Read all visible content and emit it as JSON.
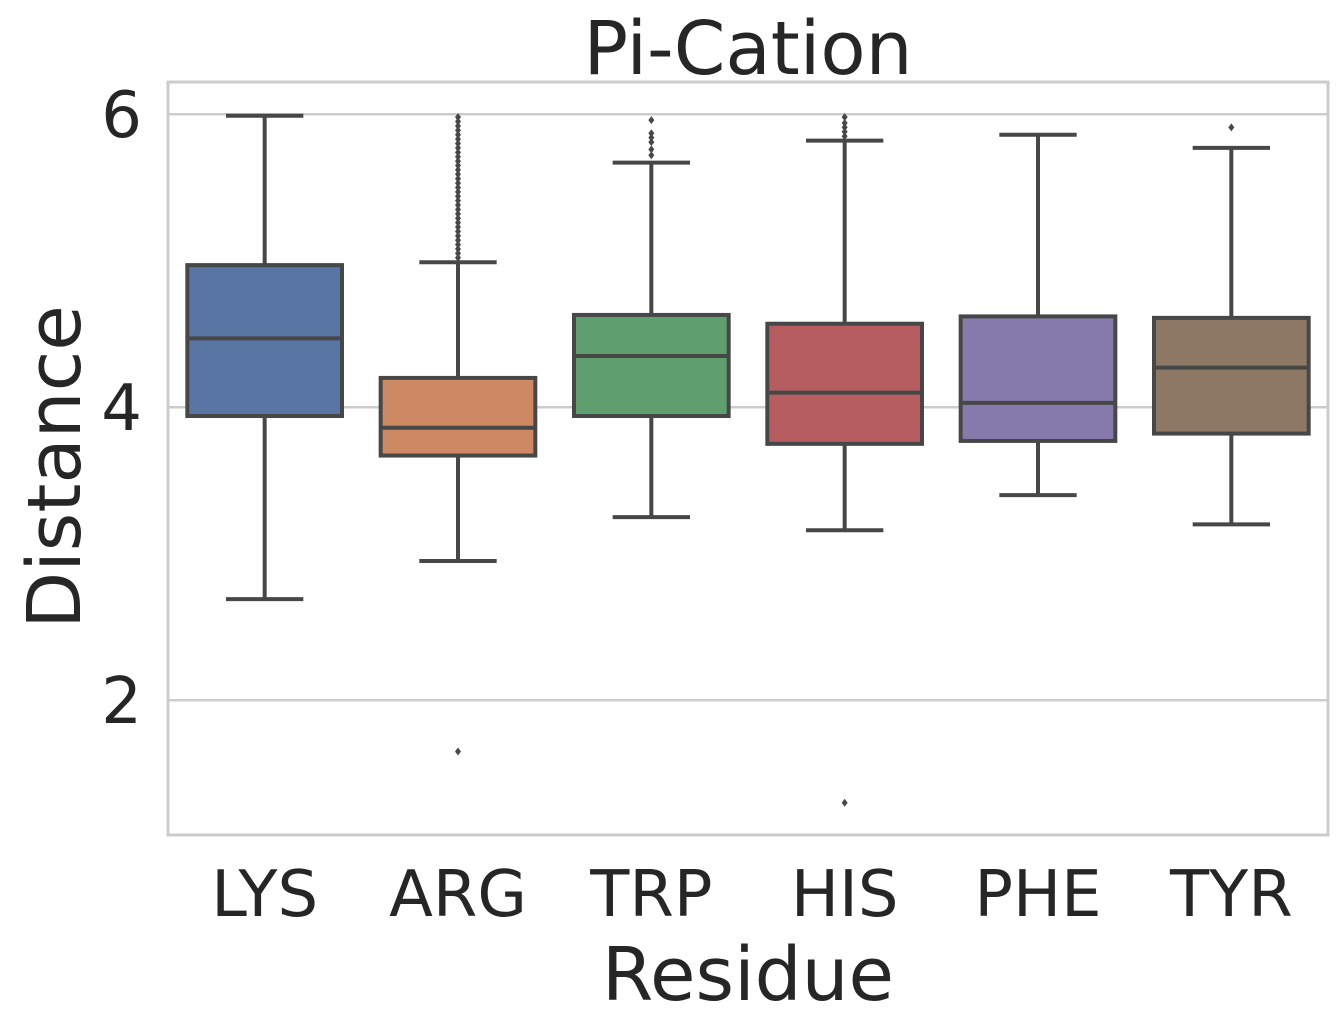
{
  "chart_data": {
    "type": "box",
    "title": "Pi-Cation",
    "xlabel": "Residue",
    "ylabel": "Distance",
    "ylim": [
      1.08,
      6.22
    ],
    "yticks": [
      2,
      4,
      6
    ],
    "ytick_labels": [
      "2",
      "4",
      "6"
    ],
    "grid": true,
    "categories": [
      "LYS",
      "ARG",
      "TRP",
      "HIS",
      "PHE",
      "TYR"
    ],
    "colors": [
      "#5875a4",
      "#cc8963",
      "#5f9e6e",
      "#b55d60",
      "#857aab",
      "#8d7866"
    ],
    "boxes": [
      {
        "category": "LYS",
        "whisker_low": 2.69,
        "q1": 3.94,
        "median": 4.47,
        "q3": 4.97,
        "whisker_high": 5.99,
        "outliers": []
      },
      {
        "category": "ARG",
        "whisker_low": 2.95,
        "q1": 3.67,
        "median": 3.86,
        "q3": 4.2,
        "whisker_high": 4.99,
        "outliers": [
          1.65,
          5.02,
          5.05,
          5.08,
          5.11,
          5.14,
          5.17,
          5.2,
          5.23,
          5.26,
          5.29,
          5.32,
          5.35,
          5.38,
          5.41,
          5.44,
          5.47,
          5.5,
          5.53,
          5.56,
          5.59,
          5.62,
          5.65,
          5.68,
          5.71,
          5.74,
          5.77,
          5.8,
          5.83,
          5.86,
          5.89,
          5.92,
          5.95,
          5.98
        ]
      },
      {
        "category": "TRP",
        "whisker_low": 3.25,
        "q1": 3.94,
        "median": 4.35,
        "q3": 4.63,
        "whisker_high": 5.67,
        "outliers": [
          5.72,
          5.76,
          5.81,
          5.84,
          5.87,
          5.96
        ]
      },
      {
        "category": "HIS",
        "whisker_low": 3.16,
        "q1": 3.75,
        "median": 4.1,
        "q3": 4.57,
        "whisker_high": 5.82,
        "outliers": [
          1.3,
          5.85,
          5.88,
          5.91,
          5.94,
          5.98
        ]
      },
      {
        "category": "PHE",
        "whisker_low": 3.4,
        "q1": 3.77,
        "median": 4.03,
        "q3": 4.62,
        "whisker_high": 5.86,
        "outliers": []
      },
      {
        "category": "TYR",
        "whisker_low": 3.2,
        "q1": 3.82,
        "median": 4.27,
        "q3": 4.61,
        "whisker_high": 5.77,
        "outliers": [
          5.91
        ]
      }
    ]
  }
}
